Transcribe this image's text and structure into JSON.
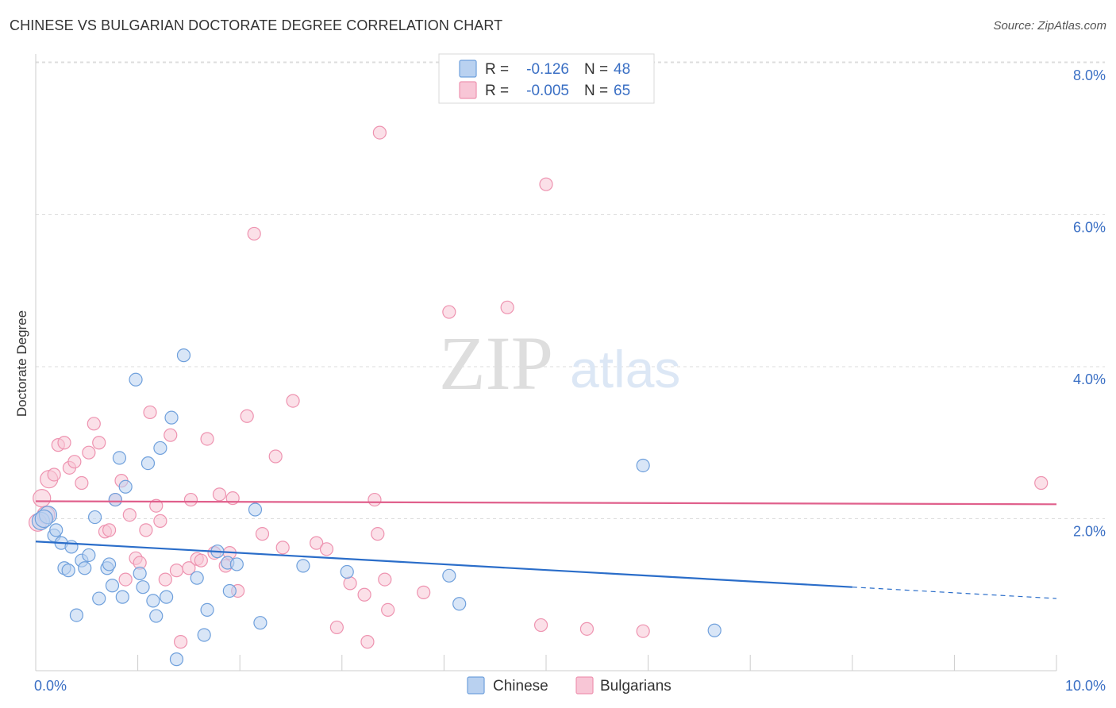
{
  "chart_data": {
    "type": "scatter",
    "title": "CHINESE VS BULGARIAN DOCTORATE DEGREE CORRELATION CHART",
    "source": "Source: ZipAtlas.com",
    "ylabel": "Doctorate Degree",
    "xlim": [
      0,
      10
    ],
    "ylim": [
      0,
      8.3
    ],
    "y_ticks": [
      {
        "value": 2,
        "label": "2.0%"
      },
      {
        "value": 4,
        "label": "4.0%"
      },
      {
        "value": 6,
        "label": "6.0%"
      },
      {
        "value": 8,
        "label": "8.0%"
      }
    ],
    "x_tick_labels": {
      "min": "0.0%",
      "max": "10.0%"
    },
    "watermark": {
      "zip": "ZIP",
      "atlas": "atlas"
    },
    "legend": {
      "r_label": "R =",
      "n_label": "N =",
      "entries": [
        {
          "series": "Chinese",
          "r": "-0.126",
          "n": "48"
        },
        {
          "series": "Bulgarians",
          "r": "-0.005",
          "n": "65"
        }
      ]
    },
    "series": [
      {
        "name": "Chinese",
        "color": "#6fa0dc",
        "fill": "#b9d1f0",
        "trend": {
          "x0": 0,
          "y0": 1.7,
          "x1": 10,
          "y1": 0.95,
          "solid_until": 8.0,
          "color": "#2a6dc9"
        },
        "points": [
          [
            0.05,
            1.97
          ],
          [
            0.12,
            2.05
          ],
          [
            0.18,
            1.78
          ],
          [
            0.2,
            1.85
          ],
          [
            0.25,
            1.68
          ],
          [
            0.28,
            1.35
          ],
          [
            0.32,
            1.32
          ],
          [
            0.35,
            1.63
          ],
          [
            0.4,
            0.73
          ],
          [
            0.45,
            1.45
          ],
          [
            0.48,
            1.35
          ],
          [
            0.52,
            1.52
          ],
          [
            0.58,
            2.02
          ],
          [
            0.62,
            0.95
          ],
          [
            0.7,
            1.35
          ],
          [
            0.72,
            1.4
          ],
          [
            0.75,
            1.12
          ],
          [
            0.78,
            2.25
          ],
          [
            0.82,
            2.8
          ],
          [
            0.85,
            0.97
          ],
          [
            0.88,
            2.42
          ],
          [
            0.98,
            3.83
          ],
          [
            1.02,
            1.28
          ],
          [
            1.05,
            1.1
          ],
          [
            1.1,
            2.73
          ],
          [
            1.15,
            0.92
          ],
          [
            1.18,
            0.72
          ],
          [
            1.22,
            2.93
          ],
          [
            1.28,
            0.97
          ],
          [
            1.33,
            3.33
          ],
          [
            1.38,
            0.15
          ],
          [
            1.45,
            4.15
          ],
          [
            1.58,
            1.22
          ],
          [
            1.65,
            0.47
          ],
          [
            1.68,
            0.8
          ],
          [
            1.78,
            1.57
          ],
          [
            1.88,
            1.42
          ],
          [
            1.9,
            1.05
          ],
          [
            1.97,
            1.4
          ],
          [
            2.15,
            2.12
          ],
          [
            2.2,
            0.63
          ],
          [
            2.62,
            1.38
          ],
          [
            3.05,
            1.3
          ],
          [
            4.05,
            1.25
          ],
          [
            4.15,
            0.88
          ],
          [
            5.95,
            2.7
          ],
          [
            6.65,
            0.53
          ],
          [
            0.08,
            2.0
          ]
        ]
      },
      {
        "name": "Bulgarians",
        "color": "#ee93b0",
        "fill": "#f8c6d6",
        "trend": {
          "x0": 0,
          "y0": 2.23,
          "x1": 10,
          "y1": 2.19,
          "solid_until": 10.0,
          "color": "#e0608c"
        },
        "points": [
          [
            0.06,
            2.27
          ],
          [
            0.1,
            2.05
          ],
          [
            0.13,
            2.52
          ],
          [
            0.18,
            2.58
          ],
          [
            0.22,
            2.97
          ],
          [
            0.28,
            3.0
          ],
          [
            0.33,
            2.67
          ],
          [
            0.38,
            2.75
          ],
          [
            0.45,
            2.47
          ],
          [
            0.52,
            2.87
          ],
          [
            0.57,
            3.25
          ],
          [
            0.62,
            3.0
          ],
          [
            0.68,
            1.83
          ],
          [
            0.72,
            1.85
          ],
          [
            0.78,
            2.25
          ],
          [
            0.84,
            2.5
          ],
          [
            0.88,
            1.2
          ],
          [
            0.92,
            2.05
          ],
          [
            0.98,
            1.48
          ],
          [
            1.02,
            1.42
          ],
          [
            1.08,
            1.85
          ],
          [
            1.12,
            3.4
          ],
          [
            1.18,
            2.17
          ],
          [
            1.22,
            1.97
          ],
          [
            1.27,
            1.2
          ],
          [
            1.32,
            3.1
          ],
          [
            1.38,
            1.32
          ],
          [
            1.42,
            0.38
          ],
          [
            1.5,
            1.35
          ],
          [
            1.52,
            2.25
          ],
          [
            1.58,
            1.47
          ],
          [
            1.62,
            1.45
          ],
          [
            1.68,
            3.05
          ],
          [
            1.75,
            1.55
          ],
          [
            1.8,
            2.32
          ],
          [
            1.86,
            1.38
          ],
          [
            1.9,
            1.55
          ],
          [
            1.93,
            2.27
          ],
          [
            1.98,
            1.05
          ],
          [
            2.07,
            3.35
          ],
          [
            2.14,
            5.75
          ],
          [
            2.22,
            1.8
          ],
          [
            2.35,
            2.82
          ],
          [
            2.42,
            1.62
          ],
          [
            2.52,
            3.55
          ],
          [
            2.75,
            1.68
          ],
          [
            2.85,
            1.6
          ],
          [
            2.95,
            0.57
          ],
          [
            3.08,
            1.15
          ],
          [
            3.22,
            1.0
          ],
          [
            3.25,
            0.38
          ],
          [
            3.32,
            2.25
          ],
          [
            3.35,
            1.8
          ],
          [
            3.37,
            7.08
          ],
          [
            3.42,
            1.2
          ],
          [
            3.45,
            0.8
          ],
          [
            3.8,
            1.03
          ],
          [
            4.05,
            4.72
          ],
          [
            4.62,
            4.78
          ],
          [
            4.95,
            0.6
          ],
          [
            5.0,
            6.4
          ],
          [
            5.4,
            0.55
          ],
          [
            5.95,
            0.52
          ],
          [
            9.85,
            2.47
          ],
          [
            0.02,
            1.95
          ]
        ]
      }
    ]
  }
}
